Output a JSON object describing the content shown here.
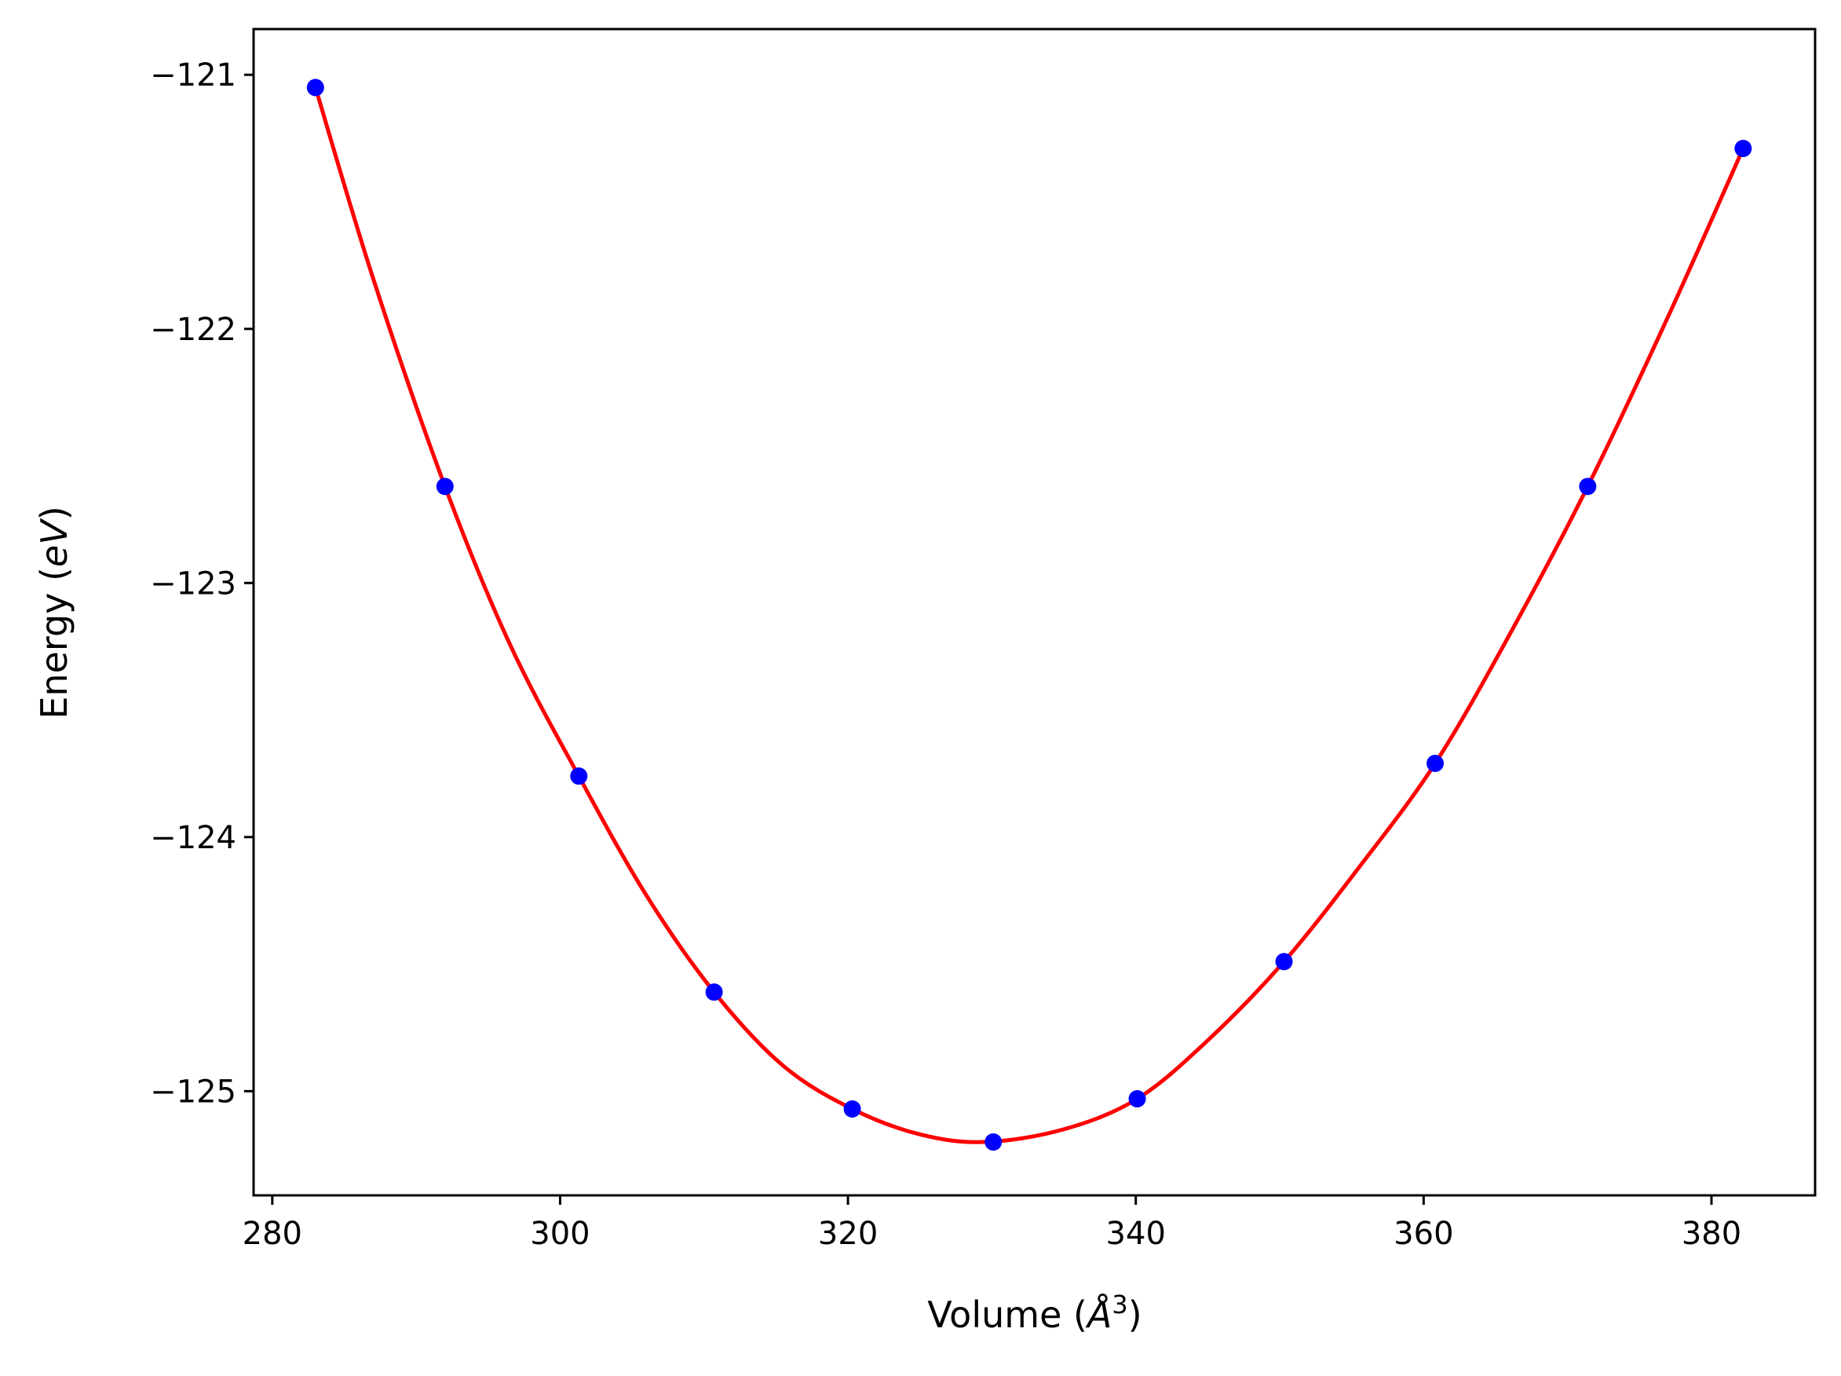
{
  "chart_data": {
    "type": "scatter",
    "xlabel": "Volume (Å³)",
    "xlabel_parts": {
      "prefix": "Volume (",
      "symbol": "Å",
      "exponent": "3",
      "suffix": ")"
    },
    "ylabel": "Energy (eV)",
    "ylabel_parts": {
      "prefix": "Energy (",
      "variable": "eV",
      "suffix": ")"
    },
    "xlim": [
      278.7,
      387.2
    ],
    "ylim": [
      -125.41,
      -120.82
    ],
    "xticks": [
      280,
      300,
      320,
      340,
      360,
      380
    ],
    "yticks": [
      -121,
      -122,
      -123,
      -124,
      -125
    ],
    "xtick_labels": [
      "280",
      "300",
      "320",
      "340",
      "360",
      "380"
    ],
    "ytick_labels": [
      "−121",
      "−122",
      "−123",
      "−124",
      "−125"
    ],
    "grid": false,
    "series": [
      {
        "kind": "points",
        "color": "#0000ff",
        "x": [
          283.0,
          292.0,
          301.3,
          310.7,
          320.3,
          330.1,
          340.1,
          350.3,
          360.8,
          371.4,
          382.2
        ],
        "y": [
          -121.05,
          -122.62,
          -123.76,
          -124.61,
          -125.07,
          -125.2,
          -125.03,
          -124.49,
          -123.71,
          -122.62,
          -121.29
        ]
      },
      {
        "kind": "fit-curve",
        "color": "#ff0000",
        "x": [
          283.0,
          287.0,
          292.0,
          296.5,
          301.3,
          306.0,
          310.7,
          315.5,
          320.3,
          325.0,
          329.5,
          335.0,
          340.1,
          345.0,
          350.3,
          355.5,
          360.8,
          366.0,
          371.4,
          377.0,
          382.2
        ],
        "y": [
          -121.05,
          -121.8,
          -122.62,
          -123.24,
          -123.76,
          -124.23,
          -124.61,
          -124.9,
          -125.07,
          -125.17,
          -125.2,
          -125.15,
          -125.03,
          -124.8,
          -124.49,
          -124.12,
          -123.71,
          -123.2,
          -122.62,
          -121.95,
          -121.29
        ]
      }
    ]
  }
}
